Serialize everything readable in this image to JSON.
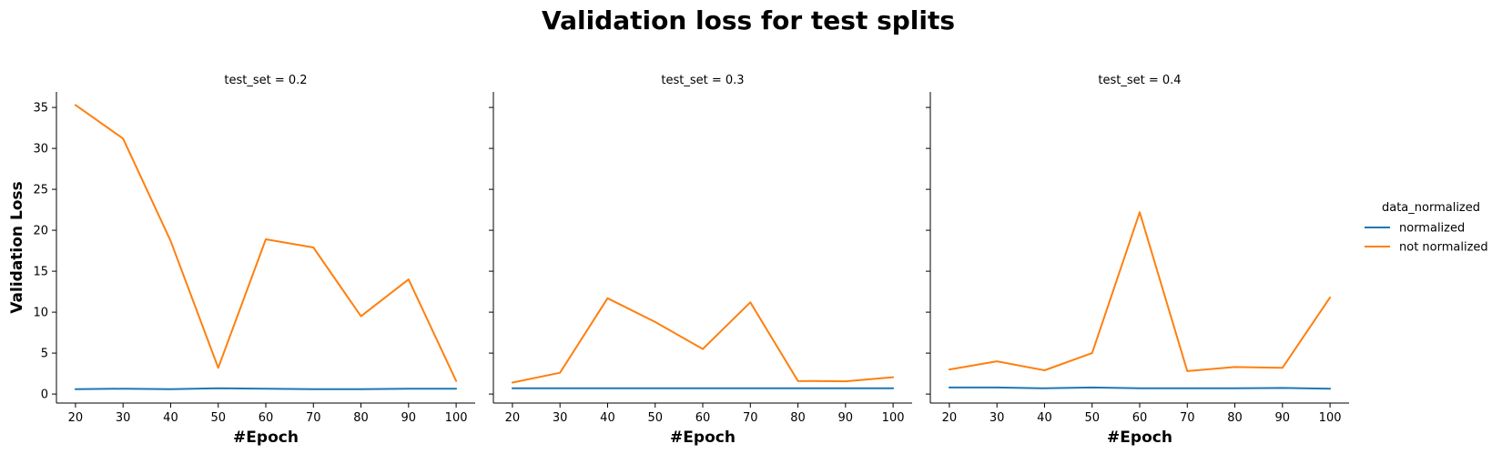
{
  "chart_data": {
    "type": "line",
    "title": "Validation loss for test splits",
    "xlabel": "#Epoch",
    "ylabel": "Validation Loss",
    "x": [
      20,
      30,
      40,
      50,
      60,
      70,
      80,
      90,
      100
    ],
    "xticks": [
      "20",
      "30",
      "40",
      "50",
      "60",
      "70",
      "80",
      "90",
      "100"
    ],
    "yticks": [
      "0",
      "5",
      "10",
      "15",
      "20",
      "25",
      "30",
      "35"
    ],
    "ylim": [
      -1.1,
      36.9
    ],
    "xlim": [
      16,
      104
    ],
    "sharey": true,
    "grid": false,
    "legend": {
      "title": "data_normalized",
      "position": "right",
      "entries": [
        {
          "name": "normalized",
          "color": "#1f77b4"
        },
        {
          "name": "not normalized",
          "color": "#ff7f0e"
        }
      ]
    },
    "panels": [
      {
        "title": "test_set = 0.2",
        "series": [
          {
            "name": "normalized",
            "values": [
              0.6,
              0.65,
              0.6,
              0.7,
              0.65,
              0.6,
              0.6,
              0.65,
              0.65
            ]
          },
          {
            "name": "not normalized",
            "values": [
              35.3,
              31.2,
              18.7,
              3.2,
              18.9,
              17.9,
              9.5,
              14.0,
              1.6
            ]
          }
        ]
      },
      {
        "title": "test_set = 0.3",
        "series": [
          {
            "name": "normalized",
            "values": [
              0.7,
              0.7,
              0.7,
              0.7,
              0.7,
              0.7,
              0.7,
              0.7,
              0.7
            ]
          },
          {
            "name": "not normalized",
            "values": [
              1.4,
              2.6,
              11.7,
              8.8,
              5.5,
              11.2,
              1.6,
              1.55,
              2.05
            ]
          }
        ]
      },
      {
        "title": "test_set = 0.4",
        "series": [
          {
            "name": "normalized",
            "values": [
              0.8,
              0.8,
              0.7,
              0.8,
              0.7,
              0.7,
              0.7,
              0.75,
              0.65
            ]
          },
          {
            "name": "not normalized",
            "values": [
              3.0,
              4.0,
              2.9,
              5.0,
              22.2,
              2.8,
              3.3,
              3.2,
              11.8
            ]
          }
        ]
      }
    ]
  }
}
